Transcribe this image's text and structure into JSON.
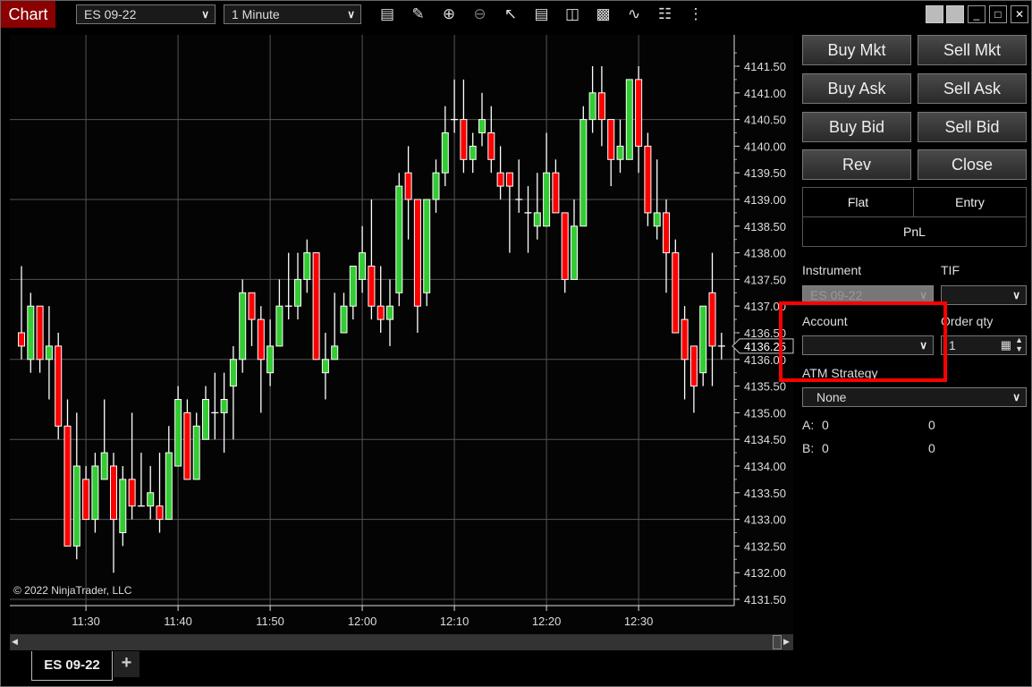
{
  "titlebar": {
    "title": "Chart",
    "instrument": "ES 09-22",
    "interval": "1 Minute",
    "toolbar_icons": [
      "bar-type-icon",
      "pencil-icon",
      "zoom-in-icon",
      "zoom-out-icon",
      "pointer-icon",
      "data-box-icon",
      "properties-icon",
      "chart-trader-icon",
      "indicators-icon",
      "strategies-icon",
      "more-icon"
    ]
  },
  "window_controls": [
    "gray-box-icon",
    "gray-box-icon",
    "minimize-icon",
    "maximize-icon",
    "close-icon"
  ],
  "chart": {
    "copyright": "© 2022 NinjaTrader, LLC",
    "current_price": "4136.25",
    "price_ticks": [
      "4141.50",
      "4141.00",
      "4140.50",
      "4140.00",
      "4139.50",
      "4139.00",
      "4138.50",
      "4138.00",
      "4137.50",
      "4137.00",
      "4136.50",
      "4136.00",
      "4135.50",
      "4135.00",
      "4134.50",
      "4134.00",
      "4133.50",
      "4133.00",
      "4132.50",
      "4132.00",
      "4131.50"
    ],
    "time_ticks": [
      "11:30",
      "11:40",
      "11:50",
      "12:00",
      "12:10",
      "12:20",
      "12:30"
    ],
    "colors": {
      "up": "#33cc33",
      "down": "#ff0000",
      "outline": "#ffffff",
      "grid": "#555555"
    }
  },
  "chart_data": {
    "type": "candlestick",
    "xlabel": "",
    "ylabel": "",
    "ylim": [
      4131.5,
      4141.5
    ],
    "fields": [
      "time",
      "open",
      "high",
      "low",
      "close"
    ],
    "candles": [
      [
        "11:23",
        4136.5,
        4137.75,
        4136.0,
        4136.25
      ],
      [
        "11:24",
        4136.0,
        4137.25,
        4135.75,
        4137.0
      ],
      [
        "11:25",
        4137.0,
        4137.0,
        4135.75,
        4136.0
      ],
      [
        "11:26",
        4136.0,
        4137.0,
        4135.25,
        4136.25
      ],
      [
        "11:27",
        4136.25,
        4136.5,
        4134.5,
        4134.75
      ],
      [
        "11:28",
        4134.75,
        4135.25,
        4132.5,
        4132.5
      ],
      [
        "11:29",
        4132.5,
        4135.0,
        4132.25,
        4134.0
      ],
      [
        "11:30",
        4133.75,
        4134.0,
        4133.0,
        4133.0
      ],
      [
        "11:31",
        4133.0,
        4134.25,
        4132.75,
        4134.0
      ],
      [
        "11:32",
        4133.75,
        4135.25,
        4133.75,
        4134.25
      ],
      [
        "11:33",
        4134.0,
        4134.25,
        4132.0,
        4133.0
      ],
      [
        "11:34",
        4132.75,
        4134.0,
        4132.5,
        4133.75
      ],
      [
        "11:35",
        4133.75,
        4135.0,
        4133.0,
        4133.25
      ],
      [
        "11:36",
        4133.25,
        4134.25,
        4133.25,
        4133.25
      ],
      [
        "11:37",
        4133.25,
        4134.0,
        4133.0,
        4133.5
      ],
      [
        "11:38",
        4133.25,
        4134.25,
        4132.75,
        4133.0
      ],
      [
        "11:39",
        4133.0,
        4134.75,
        4133.0,
        4134.25
      ],
      [
        "11:40",
        4134.0,
        4135.5,
        4134.0,
        4135.25
      ],
      [
        "11:41",
        4135.0,
        4135.25,
        4133.75,
        4133.75
      ],
      [
        "11:42",
        4133.75,
        4135.0,
        4133.75,
        4134.75
      ],
      [
        "11:43",
        4134.5,
        4135.5,
        4134.5,
        4135.25
      ],
      [
        "11:44",
        4135.0,
        4135.75,
        4134.5,
        4135.0
      ],
      [
        "11:45",
        4135.0,
        4135.75,
        4134.25,
        4135.25
      ],
      [
        "11:46",
        4135.5,
        4136.25,
        4134.5,
        4136.0
      ],
      [
        "11:47",
        4136.0,
        4137.5,
        4135.75,
        4137.25
      ],
      [
        "11:48",
        4137.25,
        4137.25,
        4136.25,
        4136.75
      ],
      [
        "11:49",
        4136.75,
        4137.0,
        4135.0,
        4136.0
      ],
      [
        "11:50",
        4135.75,
        4136.75,
        4135.5,
        4136.25
      ],
      [
        "11:51",
        4136.25,
        4137.5,
        4136.25,
        4137.0
      ],
      [
        "11:52",
        4137.0,
        4138.0,
        4136.75,
        4137.0
      ],
      [
        "11:53",
        4137.0,
        4138.0,
        4136.75,
        4137.5
      ],
      [
        "11:54",
        4137.5,
        4138.25,
        4137.25,
        4138.0
      ],
      [
        "11:55",
        4138.0,
        4138.0,
        4136.0,
        4136.0
      ],
      [
        "11:56",
        4135.75,
        4136.5,
        4135.25,
        4136.0
      ],
      [
        "11:57",
        4136.0,
        4137.25,
        4136.0,
        4136.25
      ],
      [
        "11:58",
        4136.5,
        4137.25,
        4136.5,
        4137.0
      ],
      [
        "11:59",
        4137.0,
        4137.75,
        4136.75,
        4137.75
      ],
      [
        "12:00",
        4137.5,
        4138.5,
        4137.25,
        4138.0
      ],
      [
        "12:01",
        4137.75,
        4139.0,
        4136.75,
        4137.0
      ],
      [
        "12:02",
        4137.0,
        4137.75,
        4136.5,
        4136.75
      ],
      [
        "12:03",
        4136.75,
        4137.5,
        4136.25,
        4137.0
      ],
      [
        "12:04",
        4137.25,
        4139.5,
        4137.0,
        4139.25
      ],
      [
        "12:05",
        4139.5,
        4140.0,
        4138.25,
        4139.0
      ],
      [
        "12:06",
        4139.0,
        4139.0,
        4136.5,
        4137.0
      ],
      [
        "12:07",
        4137.25,
        4139.0,
        4137.0,
        4139.0
      ],
      [
        "12:08",
        4139.0,
        4139.75,
        4138.75,
        4139.5
      ],
      [
        "12:09",
        4139.5,
        4140.75,
        4139.25,
        4140.25
      ],
      [
        "12:10",
        4140.5,
        4141.25,
        4140.25,
        4140.5
      ],
      [
        "12:11",
        4140.5,
        4141.25,
        4139.5,
        4139.75
      ],
      [
        "12:12",
        4139.75,
        4140.25,
        4139.5,
        4140.0
      ],
      [
        "12:13",
        4140.25,
        4141.0,
        4140.0,
        4140.5
      ],
      [
        "12:14",
        4140.25,
        4140.75,
        4139.5,
        4139.75
      ],
      [
        "12:15",
        4139.5,
        4140.0,
        4139.0,
        4139.25
      ],
      [
        "12:16",
        4139.5,
        4139.5,
        4138.0,
        4139.25
      ],
      [
        "12:17",
        4139.0,
        4139.75,
        4138.75,
        4139.0
      ],
      [
        "12:18",
        4138.75,
        4139.25,
        4138.0,
        4138.75
      ],
      [
        "12:19",
        4138.5,
        4139.5,
        4138.25,
        4138.75
      ],
      [
        "12:20",
        4138.5,
        4140.25,
        4138.5,
        4139.5
      ],
      [
        "12:21",
        4139.5,
        4139.75,
        4138.75,
        4138.75
      ],
      [
        "12:22",
        4138.75,
        4138.75,
        4137.25,
        4137.5
      ],
      [
        "12:23",
        4137.5,
        4139.0,
        4137.5,
        4138.5
      ],
      [
        "12:24",
        4138.5,
        4140.75,
        4138.5,
        4140.5
      ],
      [
        "12:25",
        4140.5,
        4141.5,
        4140.25,
        4141.0
      ],
      [
        "12:26",
        4141.0,
        4141.5,
        4140.0,
        4140.5
      ],
      [
        "12:27",
        4140.5,
        4140.5,
        4139.25,
        4139.75
      ],
      [
        "12:28",
        4139.75,
        4140.5,
        4139.5,
        4140.0
      ],
      [
        "12:29",
        4139.75,
        4141.25,
        4139.75,
        4141.25
      ],
      [
        "12:30",
        4141.25,
        4141.5,
        4139.5,
        4140.0
      ],
      [
        "12:31",
        4140.0,
        4140.25,
        4138.5,
        4138.75
      ],
      [
        "12:32",
        4138.5,
        4139.75,
        4138.25,
        4138.75
      ],
      [
        "12:33",
        4138.75,
        4139.0,
        4137.25,
        4138.0
      ],
      [
        "12:34",
        4138.0,
        4138.25,
        4136.5,
        4136.5
      ],
      [
        "12:35",
        4136.75,
        4137.0,
        4135.25,
        4136.0
      ],
      [
        "12:36",
        4136.25,
        4136.25,
        4135.0,
        4135.5
      ],
      [
        "12:37",
        4135.75,
        4137.0,
        4135.5,
        4137.0
      ],
      [
        "12:38",
        4137.25,
        4138.0,
        4135.5,
        4136.25
      ],
      [
        "12:39",
        4136.25,
        4136.5,
        4136.0,
        4136.25
      ]
    ]
  },
  "trader": {
    "buttons": [
      [
        "Buy Mkt",
        "Sell Mkt"
      ],
      [
        "Buy Ask",
        "Sell Ask"
      ],
      [
        "Buy Bid",
        "Sell Bid"
      ],
      [
        "Rev",
        "Close"
      ]
    ],
    "position": {
      "flat": "Flat",
      "entry": "Entry",
      "pnl": "PnL"
    },
    "instrument_label": "Instrument",
    "instrument_value": "ES 09-22",
    "tif_label": "TIF",
    "tif_value": "",
    "account_label": "Account",
    "account_value": "",
    "order_qty_label": "Order qty",
    "order_qty_value": "1",
    "atm_label": "ATM Strategy",
    "atm_value": "None",
    "a_label": "A:",
    "a_value": "0",
    "a_value2": "0",
    "b_label": "B:",
    "b_value": "0",
    "b_value2": "0",
    "highlight_color": "#ff0000"
  },
  "tabs": {
    "active": "ES 09-22",
    "add": "+"
  }
}
